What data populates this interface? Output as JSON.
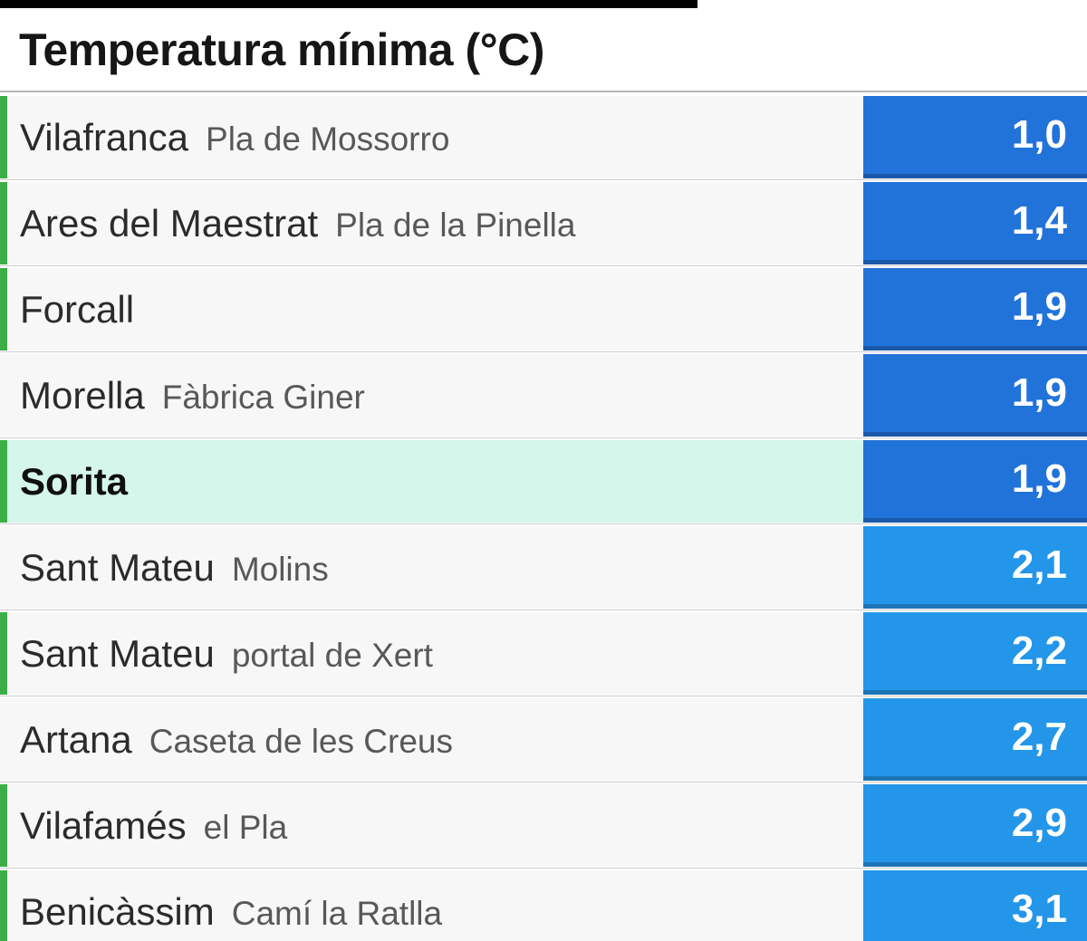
{
  "title": "Temperatura mínima (°C)",
  "colors": {
    "accent_green": "#3bae46",
    "value_dark_blue": "#2273d9",
    "value_light_blue": "#2496e9",
    "highlight_mint": "#d5f6eb",
    "row_background": "#f7f7f7"
  },
  "rows": [
    {
      "name": "Vilafranca",
      "station": "Pla de Mossorro",
      "value": "1,0",
      "accent": true,
      "highlight": false,
      "shade": "dark"
    },
    {
      "name": "Ares del Maestrat",
      "station": "Pla de la Pinella",
      "value": "1,4",
      "accent": true,
      "highlight": false,
      "shade": "dark"
    },
    {
      "name": "Forcall",
      "station": "",
      "value": "1,9",
      "accent": true,
      "highlight": false,
      "shade": "dark"
    },
    {
      "name": "Morella",
      "station": "Fàbrica Giner",
      "value": "1,9",
      "accent": false,
      "highlight": false,
      "shade": "dark"
    },
    {
      "name": "Sorita",
      "station": "",
      "value": "1,9",
      "accent": true,
      "highlight": true,
      "shade": "dark"
    },
    {
      "name": "Sant Mateu",
      "station": "Molins",
      "value": "2,1",
      "accent": false,
      "highlight": false,
      "shade": "light"
    },
    {
      "name": "Sant Mateu",
      "station": "portal de Xert",
      "value": "2,2",
      "accent": true,
      "highlight": false,
      "shade": "light"
    },
    {
      "name": "Artana",
      "station": "Caseta de les Creus",
      "value": "2,7",
      "accent": false,
      "highlight": false,
      "shade": "light"
    },
    {
      "name": "Vilafamés",
      "station": "el Pla",
      "value": "2,9",
      "accent": true,
      "highlight": false,
      "shade": "light"
    },
    {
      "name": "Benicàssim",
      "station": "Camí la Ratlla",
      "value": "3,1",
      "accent": true,
      "highlight": false,
      "shade": "light"
    }
  ],
  "chart_data": {
    "type": "table",
    "title": "Temperatura mínima (°C)",
    "columns": [
      "municipality",
      "station",
      "min_temp_c"
    ],
    "rows": [
      [
        "Vilafranca",
        "Pla de Mossorro",
        1.0
      ],
      [
        "Ares del Maestrat",
        "Pla de la Pinella",
        1.4
      ],
      [
        "Forcall",
        "",
        1.9
      ],
      [
        "Morella",
        "Fàbrica Giner",
        1.9
      ],
      [
        "Sorita",
        "",
        1.9
      ],
      [
        "Sant Mateu",
        "Molins",
        2.1
      ],
      [
        "Sant Mateu",
        "portal de Xert",
        2.2
      ],
      [
        "Artana",
        "Caseta de les Creus",
        2.7
      ],
      [
        "Vilafamés",
        "el Pla",
        2.9
      ],
      [
        "Benicàssim",
        "Camí la Ratlla",
        3.1
      ]
    ],
    "notes": "ranked ascending; highlighted row = Sorita; values below 2.0 shown on darker blue, 2.0 and above on lighter blue; green left accent on some rows"
  }
}
